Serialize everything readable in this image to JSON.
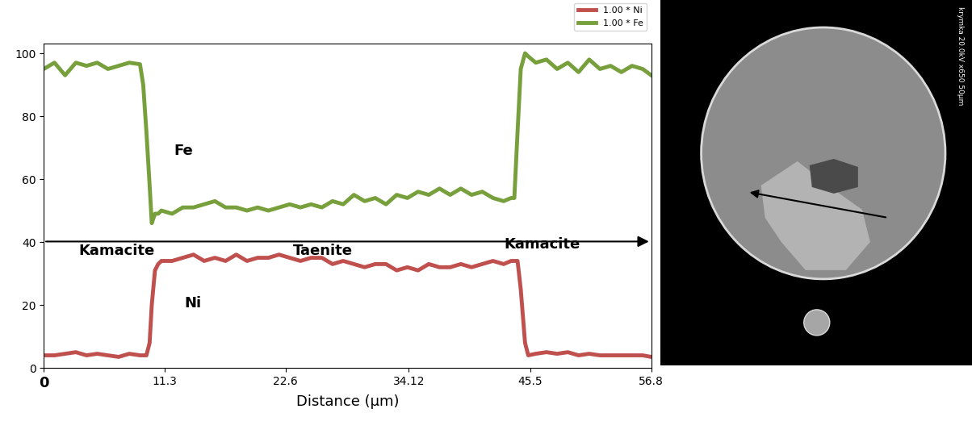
{
  "chart_data": {
    "type": "line",
    "x_label": "Distance (μm)",
    "x": [
      0,
      1,
      2,
      3,
      4,
      5,
      6,
      7,
      8,
      9,
      9.3,
      9.6,
      9.9,
      10.1,
      10.4,
      10.7,
      11,
      12,
      13,
      14,
      15,
      16,
      17,
      18,
      19,
      20,
      21,
      22,
      23,
      24,
      25,
      26,
      27,
      28,
      29,
      30,
      31,
      32,
      33,
      34,
      35,
      36,
      37,
      38,
      39,
      40,
      41,
      42,
      43,
      43.7,
      44,
      44.3,
      44.6,
      45,
      45.3,
      46,
      47,
      48,
      49,
      50,
      51,
      52,
      53,
      54,
      55,
      56,
      56.8
    ],
    "series": [
      {
        "name": "1.00 * Ni",
        "color": "#c0504d",
        "values": [
          4,
          4,
          4.5,
          5,
          4,
          4.5,
          4,
          3.5,
          4.5,
          4,
          4,
          4,
          8,
          20,
          31,
          33,
          34,
          34,
          35,
          36,
          34,
          35,
          34,
          36,
          34,
          35,
          35,
          36,
          35,
          34,
          35,
          35,
          33,
          34,
          33,
          32,
          33,
          33,
          31,
          32,
          31,
          33,
          32,
          32,
          33,
          32,
          33,
          34,
          33,
          34,
          34,
          34,
          25,
          8,
          4,
          4.5,
          5,
          4.5,
          5,
          4,
          4.5,
          4,
          4,
          4,
          4,
          4,
          3.5
        ]
      },
      {
        "name": "1.00 * Fe",
        "color": "#77a03c",
        "values": [
          95,
          97,
          93,
          97,
          96,
          97,
          95,
          96,
          97,
          96.5,
          90,
          75,
          58,
          46,
          49,
          49,
          50,
          49,
          51,
          51,
          52,
          53,
          51,
          51,
          50,
          51,
          50,
          51,
          52,
          51,
          52,
          51,
          53,
          52,
          55,
          53,
          54,
          52,
          55,
          54,
          56,
          55,
          57,
          55,
          57,
          55,
          56,
          54,
          53,
          54,
          54,
          75,
          95,
          100,
          99,
          97,
          98,
          95,
          97,
          94,
          98,
          95,
          96,
          94,
          96,
          95,
          93
        ]
      }
    ],
    "xlim": [
      0,
      56.8
    ],
    "xticks": [
      0,
      11.3,
      22.6,
      34.12,
      45.5,
      56.8
    ],
    "ylim": [
      0,
      103
    ],
    "yticks": [
      0,
      20,
      40,
      60,
      80,
      100
    ],
    "grid": false,
    "legend": "upper right",
    "annotations": [
      "Fe",
      "Ni",
      "Kamacite",
      "Taenite",
      "Kamacite"
    ]
  },
  "micrograph": {
    "label": "krymka 20.0kV x650 50μm"
  }
}
